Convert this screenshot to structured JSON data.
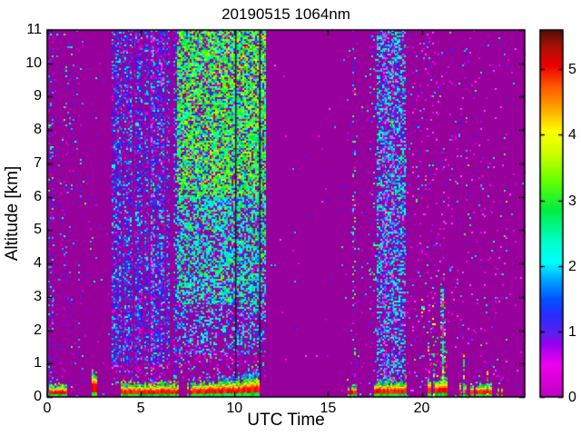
{
  "chart_data": {
    "type": "heatmap",
    "title": "20190515 1064nm",
    "xlabel": "UTC Time",
    "ylabel": "Altitude [km]",
    "x_range": [
      0,
      25.5
    ],
    "y_range": [
      0,
      11
    ],
    "x_ticks": [
      0,
      5,
      10,
      15,
      20
    ],
    "y_ticks": [
      0,
      1,
      2,
      3,
      4,
      5,
      6,
      7,
      8,
      9,
      10,
      11
    ],
    "grid": false,
    "legend": "colorbar-right",
    "background_value_color": "#98009b",
    "colorbar": {
      "range": [
        0,
        5.6
      ],
      "ticks": [
        0,
        1,
        2,
        3,
        4,
        5
      ],
      "colormap": [
        [
          0.0,
          "#c000c0"
        ],
        [
          0.5,
          "#ee00ee"
        ],
        [
          0.8,
          "#9900ee"
        ],
        [
          1.0,
          "#5522ee"
        ],
        [
          1.25,
          "#2a2aff"
        ],
        [
          1.5,
          "#0055ff"
        ],
        [
          1.8,
          "#00aaff"
        ],
        [
          2.05,
          "#00ffff"
        ],
        [
          2.35,
          "#00ffcc"
        ],
        [
          2.85,
          "#00ee44"
        ],
        [
          3.3,
          "#66ff00"
        ],
        [
          3.7,
          "#ccff00"
        ],
        [
          4.05,
          "#ffff00"
        ],
        [
          4.4,
          "#ffa500"
        ],
        [
          4.75,
          "#ff5500"
        ],
        [
          5.05,
          "#ee0000"
        ],
        [
          5.35,
          "#a81005"
        ],
        [
          5.6,
          "#4f1007"
        ]
      ]
    },
    "palettes": {
      "mix_low": [
        [
          "#cc00d0",
          3
        ],
        [
          "#7a00ee",
          2
        ],
        [
          "#2233ff",
          3
        ],
        [
          "#00bbff",
          2
        ],
        [
          "#00ffcc",
          1
        ],
        [
          "#55ff33",
          0.5
        ]
      ],
      "blue": [
        [
          "#2222ff",
          4
        ],
        [
          "#0055ff",
          3
        ],
        [
          "#00aaff",
          2
        ],
        [
          "#00ffff",
          2
        ],
        [
          "#5500ff",
          2
        ],
        [
          "#ee00ee",
          1.1
        ],
        [
          "#cc00cc",
          1
        ],
        [
          "#00ff88",
          0.7
        ]
      ],
      "green": [
        [
          "#00ee33",
          4
        ],
        [
          "#55ff00",
          3.2
        ],
        [
          "#00ff99",
          2
        ],
        [
          "#00ffee",
          2
        ],
        [
          "#aaff00",
          2
        ],
        [
          "#0088ff",
          1
        ],
        [
          "#2233ff",
          0.8
        ],
        [
          "#ee00ee",
          0.6
        ],
        [
          "#ffcc00",
          0.3
        ],
        [
          "#ff5500",
          0.15
        ]
      ],
      "green_cyan": [
        [
          "#00ff99",
          3
        ],
        [
          "#00ffee",
          3
        ],
        [
          "#00ccff",
          2.5
        ],
        [
          "#2233ff",
          2
        ],
        [
          "#00ee33",
          2
        ],
        [
          "#66ff00",
          1.2
        ],
        [
          "#ee00ee",
          0.8
        ],
        [
          "#cc00cc",
          0.8
        ]
      ],
      "cyan_blue": [
        [
          "#00ffff",
          3
        ],
        [
          "#00aaff",
          3
        ],
        [
          "#2233ff",
          2.5
        ],
        [
          "#00ffaa",
          1.5
        ],
        [
          "#ff44ff",
          1
        ],
        [
          "#cc00cc",
          0.8
        ],
        [
          "#00ff44",
          0.8
        ],
        [
          "#5500ff",
          1
        ]
      ],
      "pink_blue": [
        [
          "#ee00ee",
          3
        ],
        [
          "#ff44ff",
          2
        ],
        [
          "#aa00ff",
          1.5
        ],
        [
          "#2233ff",
          1.5
        ],
        [
          "#00ccff",
          1.5
        ],
        [
          "#00ffaa",
          0.8
        ],
        [
          "#55ff22",
          0.5
        ]
      ],
      "vivid": [
        [
          "#00ff44",
          3
        ],
        [
          "#ffff00",
          1.5
        ],
        [
          "#ff3300",
          1.5
        ],
        [
          "#00ffff",
          2
        ],
        [
          "#2233ff",
          2
        ],
        [
          "#ff00ff",
          1.5
        ]
      ],
      "warm": [
        [
          "#ffee00",
          2
        ],
        [
          "#ff8800",
          1
        ],
        [
          "#ff2200",
          1
        ],
        [
          "#ee00ee",
          0.5
        ]
      ],
      "mix_cyan": [
        [
          "#00ffcc",
          2.5
        ],
        [
          "#55ff33",
          2
        ],
        [
          "#00ccff",
          2
        ],
        [
          "#2233ff",
          1.5
        ],
        [
          "#ee00ee",
          1
        ]
      ]
    },
    "noise_regions": [
      {
        "utc": [
          0.03,
          0.3
        ],
        "alt": [
          0,
          11
        ],
        "density": 0.22,
        "palette": "mix_low"
      },
      {
        "utc": [
          0.3,
          1.9
        ],
        "alt": [
          0,
          11
        ],
        "density": 0.06,
        "palette": "mix_low"
      },
      {
        "utc": [
          1.9,
          3.45
        ],
        "alt": [
          0,
          11
        ],
        "density": 0.013,
        "palette": "mix_low"
      },
      {
        "utc": [
          3.45,
          6.55
        ],
        "alt": [
          4,
          11
        ],
        "density": 0.5,
        "palette": "blue"
      },
      {
        "utc": [
          3.45,
          6.55
        ],
        "alt": [
          1.0,
          4
        ],
        "density": 0.6,
        "palette": "blue"
      },
      {
        "utc": [
          3.45,
          6.55
        ],
        "alt": [
          0.35,
          1.0
        ],
        "density": 0.28,
        "palette": "pink_blue"
      },
      {
        "utc": [
          6.73,
          6.95
        ],
        "alt": [
          0.4,
          11
        ],
        "density": 0.5,
        "palette": "blue"
      },
      {
        "utc": [
          5.55,
          5.7
        ],
        "alt": [
          0.4,
          11
        ],
        "density": 0.35,
        "palette": "pink_blue"
      },
      {
        "utc": [
          6.05,
          6.16
        ],
        "alt": [
          0.4,
          11
        ],
        "density": 0.3,
        "palette": "pink_blue"
      },
      {
        "utc": [
          6.95,
          11.62
        ],
        "alt": [
          6,
          11
        ],
        "density": 0.8,
        "palette": "green"
      },
      {
        "utc": [
          6.95,
          11.62
        ],
        "alt": [
          2.8,
          6
        ],
        "density": 0.7,
        "palette": "green_cyan"
      },
      {
        "utc": [
          6.95,
          11.62
        ],
        "alt": [
          1.3,
          2.8
        ],
        "density": 0.45,
        "palette": "cyan_blue"
      },
      {
        "utc": [
          6.95,
          11.62
        ],
        "alt": [
          0.5,
          1.3
        ],
        "density": 0.2,
        "palette": "pink_blue"
      },
      {
        "utc": [
          8.2,
          11.62
        ],
        "alt": [
          9.3,
          11
        ],
        "density": 0.06,
        "palette": "warm"
      },
      {
        "utc": [
          11.62,
          15.7
        ],
        "alt": [
          0,
          11
        ],
        "density": 0.004,
        "palette": "pink_blue"
      },
      {
        "utc": [
          15.7,
          16.28
        ],
        "alt": [
          0,
          11
        ],
        "density": 0.018,
        "palette": "mix_low"
      },
      {
        "utc": [
          16.28,
          16.5
        ],
        "alt": [
          0,
          11
        ],
        "density": 0.16,
        "palette": "mix_cyan"
      },
      {
        "utc": [
          16.5,
          17.2
        ],
        "alt": [
          0,
          11
        ],
        "density": 0.045,
        "palette": "mix_low"
      },
      {
        "utc": [
          17.2,
          17.6
        ],
        "alt": [
          0,
          11
        ],
        "density": 0.12,
        "palette": "mix_low"
      },
      {
        "utc": [
          17.6,
          19.1
        ],
        "alt": [
          0.4,
          11
        ],
        "density": 0.55,
        "palette": "cyan_blue"
      },
      {
        "utc": [
          17.95,
          18.07
        ],
        "alt": [
          0.4,
          11
        ],
        "density": 0.45,
        "palette": "pink_blue"
      },
      {
        "utc": [
          18.4,
          18.52
        ],
        "alt": [
          0.4,
          11
        ],
        "density": 0.45,
        "palette": "pink_blue"
      },
      {
        "utc": [
          19.1,
          21.3
        ],
        "alt": [
          0,
          11
        ],
        "density": 0.065,
        "palette": "pink_blue"
      },
      {
        "utc": [
          21.3,
          24.6
        ],
        "alt": [
          0,
          11
        ],
        "density": 0.038,
        "palette": "pink_blue"
      },
      {
        "utc": [
          19.95,
          20.15
        ],
        "alt": [
          2.5,
          3.1
        ],
        "density": 0.25,
        "palette": "vivid"
      },
      {
        "utc": [
          20.55,
          20.75
        ],
        "alt": [
          1.8,
          3.3
        ],
        "density": 0.22,
        "palette": "vivid"
      },
      {
        "utc": [
          21.0,
          21.25
        ],
        "alt": [
          0,
          3.4
        ],
        "density": 0.3,
        "palette": "vivid"
      },
      {
        "utc": [
          21.08,
          21.16
        ],
        "alt": [
          0,
          3.2
        ],
        "density": 0.85,
        "palette": "vivid"
      },
      {
        "utc": [
          20.3,
          21.4
        ],
        "alt": [
          0,
          1.8
        ],
        "density": 0.1,
        "palette": "vivid"
      },
      {
        "utc": [
          24.6,
          25.5
        ],
        "alt": [
          0,
          11
        ],
        "density": 0.006,
        "palette": "pink_blue"
      }
    ],
    "clear_gaps_utc": [
      [
        3.97,
        4.05
      ],
      [
        4.55,
        4.68
      ],
      [
        5.1,
        5.2
      ],
      [
        5.42,
        5.52
      ],
      [
        6.28,
        6.38
      ],
      [
        6.55,
        6.73
      ]
    ],
    "dark_lines_utc": [
      [
        10.03,
        10.11
      ],
      [
        11.32,
        11.4
      ]
    ],
    "surface_layers": [
      {
        "utc": [
          0.1,
          0.42
        ],
        "top": 0.3,
        "holes": 0.15
      },
      {
        "utc": [
          0.5,
          1.05
        ],
        "top": 0.33,
        "holes": 0.1
      },
      {
        "utc": [
          2.3,
          2.65
        ],
        "top": 0.58,
        "holes": 0.05,
        "red_boost": true
      },
      {
        "utc": [
          3.95,
          7.05
        ],
        "top": 0.36,
        "top2": 0.38,
        "holes": 0.08
      },
      {
        "utc": [
          7.45,
          11.35
        ],
        "top": 0.38,
        "top2": 0.55,
        "holes": 0.05,
        "cap_after": 9.3
      },
      {
        "utc": [
          16.05,
          16.5
        ],
        "top": 0.3,
        "holes": 0.35
      },
      {
        "utc": [
          17.45,
          19.3
        ],
        "top": 0.42,
        "holes": 0.1
      },
      {
        "utc": [
          20.3,
          21.4
        ],
        "top": 0.5,
        "holes": 0.15,
        "spike": 1.0
      },
      {
        "utc": [
          21.9,
          23.7
        ],
        "top": 0.33,
        "holes": 0.3,
        "spike": 0.9
      },
      {
        "utc": [
          23.95,
          24.35
        ],
        "top": 0.26,
        "holes": 0.3
      }
    ],
    "surface_colors": {
      "green_low": [
        "#00cc00",
        "#33ee00",
        "#00ee66"
      ],
      "red": [
        "#ff1100",
        "#ee0000",
        "#ff3300"
      ],
      "orange": [
        "#ff8800"
      ],
      "yellow": [
        "#ffee00"
      ],
      "green_top": [
        "#33ee00",
        "#aaff00",
        "#00dd22"
      ],
      "cap": [
        "#00ffff",
        "#0099ff",
        "#2233ff"
      ],
      "spike": [
        "#00ff44",
        "#ffff00",
        "#ff3300",
        "#00ffff",
        "#2233ff"
      ]
    }
  }
}
